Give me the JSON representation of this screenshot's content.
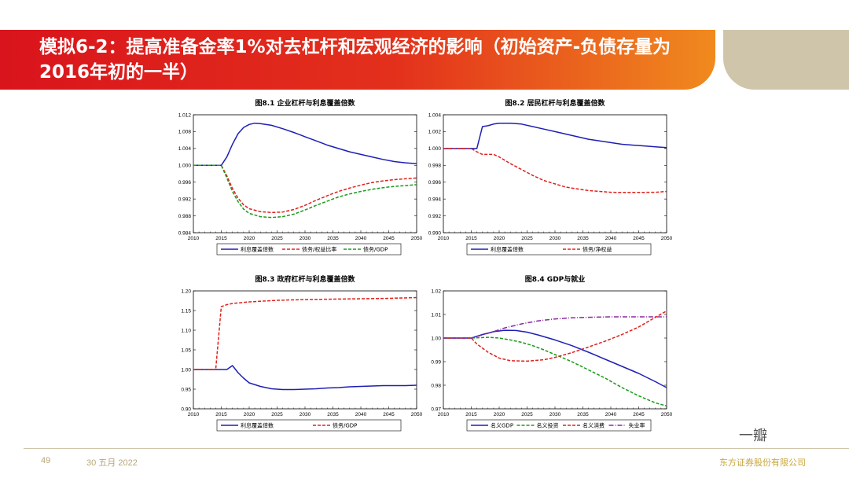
{
  "slide": {
    "title": "模拟6-2：提高准备金率1%对去杠杆和宏观经济的影响（初始资产-负债存量为2016年初的一半）",
    "page_number": "49",
    "date": "30 五月 2022",
    "company": "东方证券股份有限公司",
    "watermark": "一瓣"
  },
  "colors": {
    "blue": "#1f1fb4",
    "red": "#e0201c",
    "green": "#1a9a1a",
    "purple": "#8a2aa0"
  },
  "chart_data": [
    {
      "type": "line",
      "title": "图8.1  企业杠杆与利息覆盖倍数",
      "x_ticks": [
        2010,
        2015,
        2020,
        2025,
        2030,
        2035,
        2040,
        2045,
        2050
      ],
      "y_ticks": [
        "0.984",
        "0.988",
        "0.992",
        "0.996",
        "1.000",
        "1.004",
        "1.008",
        "1.012"
      ],
      "xlim": [
        2010,
        2050
      ],
      "ylim": [
        0.984,
        1.012
      ],
      "series": [
        {
          "name": "利息覆盖倍数",
          "color": "#1f1fb4",
          "dash": "none",
          "points": [
            [
              2010,
              1.0
            ],
            [
              2015,
              1.0
            ],
            [
              2016,
              1.002
            ],
            [
              2017,
              1.005
            ],
            [
              2018,
              1.0075
            ],
            [
              2019,
              1.009
            ],
            [
              2020,
              1.0097
            ],
            [
              2021,
              1.01
            ],
            [
              2022,
              1.0099
            ],
            [
              2024,
              1.0095
            ],
            [
              2026,
              1.0087
            ],
            [
              2028,
              1.0078
            ],
            [
              2030,
              1.0068
            ],
            [
              2032,
              1.0058
            ],
            [
              2034,
              1.0048
            ],
            [
              2036,
              1.004
            ],
            [
              2038,
              1.0032
            ],
            [
              2040,
              1.0026
            ],
            [
              2042,
              1.002
            ],
            [
              2044,
              1.0014
            ],
            [
              2046,
              1.0009
            ],
            [
              2048,
              1.0006
            ],
            [
              2050,
              1.0004
            ]
          ]
        },
        {
          "name": "债务/权益比率",
          "color": "#e0201c",
          "dash": "4,2",
          "points": [
            [
              2010,
              1.0
            ],
            [
              2015,
              1.0
            ],
            [
              2016,
              0.9975
            ],
            [
              2017,
              0.9945
            ],
            [
              2018,
              0.9922
            ],
            [
              2019,
              0.9906
            ],
            [
              2020,
              0.9897
            ],
            [
              2022,
              0.989
            ],
            [
              2024,
              0.9888
            ],
            [
              2026,
              0.9889
            ],
            [
              2028,
              0.9895
            ],
            [
              2030,
              0.9905
            ],
            [
              2032,
              0.9917
            ],
            [
              2034,
              0.9928
            ],
            [
              2036,
              0.9938
            ],
            [
              2038,
              0.9946
            ],
            [
              2040,
              0.9953
            ],
            [
              2042,
              0.9959
            ],
            [
              2044,
              0.9963
            ],
            [
              2046,
              0.9966
            ],
            [
              2048,
              0.9968
            ],
            [
              2050,
              0.997
            ]
          ]
        },
        {
          "name": "债务/GDP",
          "color": "#1a9a1a",
          "dash": "4,2",
          "points": [
            [
              2010,
              1.0
            ],
            [
              2015,
              1.0
            ],
            [
              2016,
              0.997
            ],
            [
              2017,
              0.9938
            ],
            [
              2018,
              0.9914
            ],
            [
              2019,
              0.9896
            ],
            [
              2020,
              0.9886
            ],
            [
              2022,
              0.9878
            ],
            [
              2024,
              0.9876
            ],
            [
              2026,
              0.9878
            ],
            [
              2028,
              0.9884
            ],
            [
              2030,
              0.9894
            ],
            [
              2032,
              0.9905
            ],
            [
              2034,
              0.9915
            ],
            [
              2036,
              0.9925
            ],
            [
              2038,
              0.9932
            ],
            [
              2040,
              0.9938
            ],
            [
              2042,
              0.9943
            ],
            [
              2044,
              0.9947
            ],
            [
              2046,
              0.995
            ],
            [
              2048,
              0.9952
            ],
            [
              2050,
              0.9954
            ]
          ]
        }
      ]
    },
    {
      "type": "line",
      "title": "图8.2  居民杠杆与利息覆盖倍数",
      "x_ticks": [
        2010,
        2015,
        2020,
        2025,
        2030,
        2035,
        2040,
        2045,
        2050
      ],
      "y_ticks": [
        "0.990",
        "0.992",
        "0.994",
        "0.996",
        "0.998",
        "1.000",
        "1.002",
        "1.004"
      ],
      "xlim": [
        2010,
        2050
      ],
      "ylim": [
        0.99,
        1.004
      ],
      "series": [
        {
          "name": "利息覆盖倍数",
          "color": "#1f1fb4",
          "dash": "none",
          "points": [
            [
              2010,
              1.0
            ],
            [
              2016,
              1.0
            ],
            [
              2017,
              1.0026
            ],
            [
              2018,
              1.0027
            ],
            [
              2019,
              1.0029
            ],
            [
              2020,
              1.003
            ],
            [
              2022,
              1.003
            ],
            [
              2024,
              1.0029
            ],
            [
              2026,
              1.0026
            ],
            [
              2028,
              1.0023
            ],
            [
              2030,
              1.002
            ],
            [
              2032,
              1.0017
            ],
            [
              2034,
              1.0014
            ],
            [
              2036,
              1.0011
            ],
            [
              2038,
              1.0009
            ],
            [
              2040,
              1.0007
            ],
            [
              2042,
              1.0005
            ],
            [
              2044,
              1.0004
            ],
            [
              2046,
              1.0003
            ],
            [
              2048,
              1.0002
            ],
            [
              2050,
              1.0001
            ]
          ]
        },
        {
          "name": "债务/净权益",
          "color": "#e0201c",
          "dash": "4,2",
          "points": [
            [
              2010,
              1.0
            ],
            [
              2015,
              1.0
            ],
            [
              2016,
              0.9996
            ],
            [
              2017,
              0.9993
            ],
            [
              2019,
              0.9993
            ],
            [
              2020,
              0.999
            ],
            [
              2022,
              0.9982
            ],
            [
              2024,
              0.9975
            ],
            [
              2026,
              0.9968
            ],
            [
              2028,
              0.9962
            ],
            [
              2030,
              0.9958
            ],
            [
              2032,
              0.9954
            ],
            [
              2034,
              0.9952
            ],
            [
              2036,
              0.995
            ],
            [
              2038,
              0.9949
            ],
            [
              2040,
              0.9948
            ],
            [
              2042,
              0.99478
            ],
            [
              2044,
              0.99478
            ],
            [
              2046,
              0.99479
            ],
            [
              2048,
              0.9948
            ],
            [
              2050,
              0.9949
            ]
          ]
        }
      ]
    },
    {
      "type": "line",
      "title": "图8.3  政府杠杆与利息覆盖倍数",
      "x_ticks": [
        2010,
        2015,
        2020,
        2025,
        2030,
        2035,
        2040,
        2045,
        2050
      ],
      "y_ticks": [
        "0.90",
        "0.95",
        "1.00",
        "1.05",
        "1.10",
        "1.15",
        "1.20"
      ],
      "xlim": [
        2010,
        2050
      ],
      "ylim": [
        0.9,
        1.2
      ],
      "series": [
        {
          "name": "利息覆盖倍数",
          "color": "#1f1fb4",
          "dash": "none",
          "points": [
            [
              2010,
              1.0
            ],
            [
              2016,
              1.0
            ],
            [
              2017,
              1.01
            ],
            [
              2018,
              0.992
            ],
            [
              2019,
              0.978
            ],
            [
              2020,
              0.966
            ],
            [
              2022,
              0.957
            ],
            [
              2024,
              0.951
            ],
            [
              2026,
              0.949
            ],
            [
              2028,
              0.949
            ],
            [
              2030,
              0.95
            ],
            [
              2032,
              0.951
            ],
            [
              2034,
              0.953
            ],
            [
              2036,
              0.954
            ],
            [
              2038,
              0.956
            ],
            [
              2040,
              0.957
            ],
            [
              2042,
              0.958
            ],
            [
              2044,
              0.959
            ],
            [
              2046,
              0.959
            ],
            [
              2048,
              0.959
            ],
            [
              2050,
              0.96
            ]
          ]
        },
        {
          "name": "债务/GDP",
          "color": "#e0201c",
          "dash": "4,2",
          "points": [
            [
              2010,
              1.0
            ],
            [
              2014,
              1.0
            ],
            [
              2015,
              1.16
            ],
            [
              2016,
              1.165
            ],
            [
              2017,
              1.168
            ],
            [
              2020,
              1.172
            ],
            [
              2025,
              1.176
            ],
            [
              2030,
              1.178
            ],
            [
              2035,
              1.179
            ],
            [
              2040,
              1.18
            ],
            [
              2045,
              1.181
            ],
            [
              2050,
              1.183
            ]
          ]
        }
      ]
    },
    {
      "type": "line",
      "title": "图8.4  GDP与就业",
      "x_ticks": [
        2010,
        2015,
        2020,
        2025,
        2030,
        2035,
        2040,
        2045,
        2050
      ],
      "y_ticks": [
        "0.97",
        "0.98",
        "0.99",
        "1.00",
        "1.01",
        "1.02"
      ],
      "xlim": [
        2010,
        2050
      ],
      "ylim": [
        0.97,
        1.02
      ],
      "series": [
        {
          "name": "名义GDP",
          "color": "#1f1fb4",
          "dash": "none",
          "points": [
            [
              2010,
              1.0
            ],
            [
              2015,
              1.0
            ],
            [
              2017,
              1.0015
            ],
            [
              2019,
              1.0027
            ],
            [
              2021,
              1.0033
            ],
            [
              2023,
              1.0032
            ],
            [
              2025,
              1.0025
            ],
            [
              2027,
              1.0013
            ],
            [
              2030,
              0.9992
            ],
            [
              2033,
              0.9968
            ],
            [
              2036,
              0.994
            ],
            [
              2039,
              0.991
            ],
            [
              2042,
              0.988
            ],
            [
              2045,
              0.985
            ],
            [
              2048,
              0.9815
            ],
            [
              2050,
              0.979
            ]
          ]
        },
        {
          "name": "名义投资",
          "color": "#1a9a1a",
          "dash": "4,2",
          "points": [
            [
              2010,
              1.0
            ],
            [
              2015,
              1.0
            ],
            [
              2018,
              1.0003
            ],
            [
              2020,
              1.0
            ],
            [
              2022,
              0.9992
            ],
            [
              2024,
              0.9982
            ],
            [
              2026,
              0.9968
            ],
            [
              2028,
              0.995
            ],
            [
              2030,
              0.993
            ],
            [
              2033,
              0.99
            ],
            [
              2036,
              0.9865
            ],
            [
              2039,
              0.983
            ],
            [
              2042,
              0.979
            ],
            [
              2045,
              0.9755
            ],
            [
              2048,
              0.9725
            ],
            [
              2050,
              0.9712
            ]
          ]
        },
        {
          "name": "名义消费",
          "color": "#e0201c",
          "dash": "4,2",
          "points": [
            [
              2010,
              1.0
            ],
            [
              2015,
              1.0
            ],
            [
              2016,
              0.9975
            ],
            [
              2018,
              0.994
            ],
            [
              2020,
              0.9915
            ],
            [
              2022,
              0.9904
            ],
            [
              2025,
              0.9902
            ],
            [
              2028,
              0.9908
            ],
            [
              2030,
              0.9918
            ],
            [
              2033,
              0.9938
            ],
            [
              2036,
              0.9962
            ],
            [
              2039,
              0.9987
            ],
            [
              2042,
              1.0015
            ],
            [
              2045,
              1.0047
            ],
            [
              2048,
              1.0088
            ],
            [
              2050,
              1.0115
            ]
          ]
        },
        {
          "name": "失业率",
          "color": "#8a2aa0",
          "dash": "6,2,1,2",
          "points": [
            [
              2010,
              1.0
            ],
            [
              2015,
              1.0
            ],
            [
              2018,
              1.002
            ],
            [
              2021,
              1.0043
            ],
            [
              2024,
              1.006
            ],
            [
              2027,
              1.0073
            ],
            [
              2030,
              1.0081
            ],
            [
              2033,
              1.0086
            ],
            [
              2036,
              1.0088
            ],
            [
              2040,
              1.009
            ],
            [
              2045,
              1.009
            ],
            [
              2050,
              1.009
            ]
          ]
        }
      ]
    }
  ]
}
